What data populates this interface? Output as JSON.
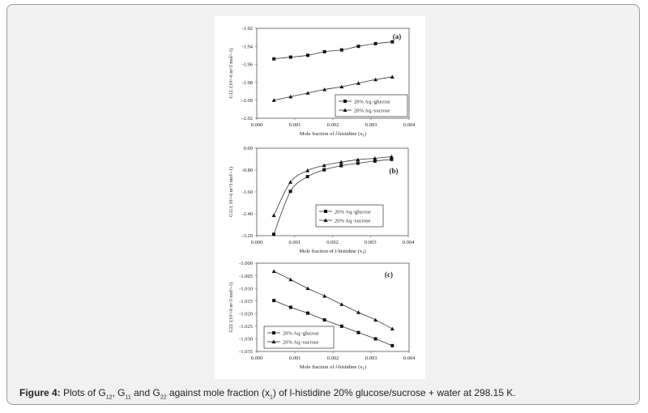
{
  "caption": {
    "label": "Figure 4:",
    "t1": " Plots of G",
    "s1": "12",
    "t2": ", G",
    "s2": "11",
    "t3": " and G",
    "s3": "22",
    "t4": " against mole fraction (x",
    "s4": "1",
    "t5": ") of l-histidine 20% glucose/sucrose + water at 298.15 K."
  },
  "chart_data": [
    {
      "type": "line",
      "panel_label": "(a)",
      "xlabel": "Mole fraction of l-histidine (x1)",
      "ylabel": "G12 /(10^-6 m^3 mol^-1)",
      "xlim": [
        0.0,
        0.004
      ],
      "ylim": [
        -2.02,
        -1.92
      ],
      "xticks": [
        "0.000",
        "0.001",
        "0.002",
        "0.003",
        "0.004"
      ],
      "yticks": [
        "-1.92",
        "-1.94",
        "-1.96",
        "-1.98",
        "-2.00",
        "-2.02"
      ],
      "legend_position": "bottom-right",
      "x": [
        0.00045,
        0.00089,
        0.00134,
        0.00178,
        0.00223,
        0.00267,
        0.00312,
        0.00356
      ],
      "series": [
        {
          "name": "20% Aq.-glucose",
          "marker": "square",
          "values": [
            -1.954,
            -1.952,
            -1.95,
            -1.946,
            -1.944,
            -1.94,
            -1.937,
            -1.935
          ]
        },
        {
          "name": "20% Aq.-sucrose",
          "marker": "triangle",
          "values": [
            -2.0,
            -1.996,
            -1.992,
            -1.988,
            -1.985,
            -1.981,
            -1.977,
            -1.974
          ]
        }
      ]
    },
    {
      "type": "line",
      "panel_label": "(b)",
      "xlabel": "Mole fraction of l-histidine (x1)",
      "ylabel": "G11/( 10^-6 m^3 mol^-1)",
      "xlim": [
        0.0,
        0.004
      ],
      "ylim": [
        -3.2,
        0.0
      ],
      "xticks": [
        "0.000",
        "0.001",
        "0.002",
        "0.003",
        "0.004"
      ],
      "yticks": [
        "0.00",
        "-0.80",
        "-1.60",
        "-2.40",
        "-3.20"
      ],
      "legend_position": "center-right",
      "x": [
        0.00045,
        0.00089,
        0.00134,
        0.00178,
        0.00223,
        0.00267,
        0.00312,
        0.00356
      ],
      "series": [
        {
          "name": "20% Aq.-glucose",
          "marker": "square",
          "values": [
            -3.15,
            -1.58,
            -1.04,
            -0.79,
            -0.64,
            -0.55,
            -0.47,
            -0.41
          ]
        },
        {
          "name": "20% Aq.-sucrose",
          "marker": "triangle",
          "values": [
            -2.46,
            -1.24,
            -0.82,
            -0.63,
            -0.51,
            -0.42,
            -0.37,
            -0.31
          ]
        }
      ]
    },
    {
      "type": "line",
      "panel_label": "(c)",
      "xlabel": "Mole fraction of l-histidine (x1)",
      "ylabel": "G22 /(10^-6 m^3 mol^-1)",
      "xlim": [
        0.0,
        0.004
      ],
      "ylim": [
        -1.035,
        -1.0
      ],
      "xticks": [
        "0.000",
        "0.001",
        "0.002",
        "0.003",
        "0.004"
      ],
      "yticks": [
        "-1.000",
        "-1.005",
        "-1.010",
        "-1.015",
        "-1.020",
        "-1.025",
        "-1.030",
        "-1.035"
      ],
      "legend_position": "bottom-left",
      "x": [
        0.00045,
        0.00089,
        0.00134,
        0.00178,
        0.00223,
        0.00267,
        0.00312,
        0.00356
      ],
      "series": [
        {
          "name": "20% Aq.-glucose",
          "marker": "square",
          "values": [
            -1.0148,
            -1.0175,
            -1.0198,
            -1.0225,
            -1.025,
            -1.0275,
            -1.03,
            -1.0327
          ]
        },
        {
          "name": "20% Aq.-sucrose",
          "marker": "triangle",
          "values": [
            -1.0032,
            -1.0065,
            -1.01,
            -1.013,
            -1.0163,
            -1.0195,
            -1.0225,
            -1.026
          ]
        }
      ]
    }
  ]
}
